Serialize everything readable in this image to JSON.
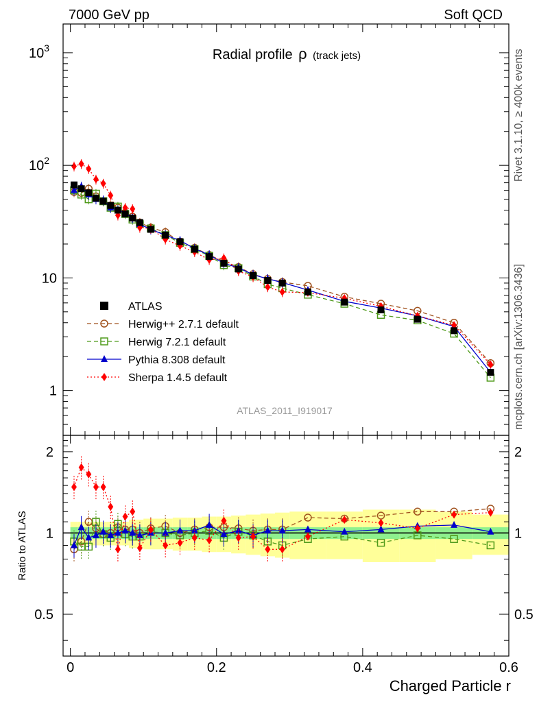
{
  "header": {
    "left": "7000 GeV pp",
    "right": "Soft QCD"
  },
  "side_labels": {
    "top": "Rivet 3.1.10, ≥ 400k events",
    "bottom": "mcplots.cern.ch [arXiv:1306.3436]"
  },
  "chart_data": {
    "type": "line",
    "title_main": "Radial profile",
    "title_symbol": "ρ",
    "title_sub": "(track jets)",
    "watermark": "ATLAS_2011_I919017",
    "xlabel": "Charged Particle r",
    "xlim": [
      -0.01,
      0.6
    ],
    "ylim_top": [
      0.4,
      1800
    ],
    "yscale_top": "log",
    "ylim_ratio": [
      0.35,
      2.3
    ],
    "ratio_ylabel": "Ratio to ATLAS",
    "x_ticks": [
      "0",
      "0.2",
      "0.4",
      "0.6"
    ],
    "x_tick_values": [
      0,
      0.2,
      0.4,
      0.6
    ],
    "y_ticks_top": [
      {
        "v": 1,
        "label": "1"
      },
      {
        "v": 10,
        "label": "10"
      },
      {
        "v": 100,
        "label": "10",
        "sup": "2"
      },
      {
        "v": 1000,
        "label": "10",
        "sup": "3"
      }
    ],
    "y_ticks_ratio": [
      {
        "v": 0.5,
        "label": "0.5"
      },
      {
        "v": 1,
        "label": "1"
      },
      {
        "v": 2,
        "label": "2"
      }
    ],
    "legend_position": "left-middle",
    "x": [
      0.005,
      0.015,
      0.025,
      0.035,
      0.045,
      0.055,
      0.065,
      0.075,
      0.085,
      0.095,
      0.11,
      0.13,
      0.15,
      0.17,
      0.19,
      0.21,
      0.23,
      0.25,
      0.27,
      0.29,
      0.325,
      0.375,
      0.425,
      0.475,
      0.525,
      0.575
    ],
    "bins": [
      [
        0,
        0.01
      ],
      [
        0.01,
        0.02
      ],
      [
        0.02,
        0.03
      ],
      [
        0.03,
        0.04
      ],
      [
        0.04,
        0.05
      ],
      [
        0.05,
        0.06
      ],
      [
        0.06,
        0.07
      ],
      [
        0.07,
        0.08
      ],
      [
        0.08,
        0.09
      ],
      [
        0.09,
        0.1
      ],
      [
        0.1,
        0.12
      ],
      [
        0.12,
        0.14
      ],
      [
        0.14,
        0.16
      ],
      [
        0.16,
        0.18
      ],
      [
        0.18,
        0.2
      ],
      [
        0.2,
        0.22
      ],
      [
        0.22,
        0.24
      ],
      [
        0.24,
        0.26
      ],
      [
        0.26,
        0.28
      ],
      [
        0.28,
        0.3
      ],
      [
        0.3,
        0.35
      ],
      [
        0.35,
        0.4
      ],
      [
        0.4,
        0.45
      ],
      [
        0.45,
        0.5
      ],
      [
        0.5,
        0.55
      ],
      [
        0.55,
        0.6
      ]
    ],
    "band_stat": [
      0.05,
      0.05,
      0.05,
      0.05,
      0.05,
      0.05,
      0.05,
      0.05,
      0.05,
      0.05,
      0.05,
      0.05,
      0.05,
      0.05,
      0.05,
      0.05,
      0.05,
      0.05,
      0.05,
      0.05,
      0.05,
      0.05,
      0.05,
      0.05,
      0.05,
      0.05
    ],
    "band_syst": [
      0.1,
      0.1,
      0.1,
      0.1,
      0.1,
      0.1,
      0.1,
      0.1,
      0.12,
      0.12,
      0.13,
      0.13,
      0.14,
      0.14,
      0.15,
      0.15,
      0.16,
      0.17,
      0.18,
      0.19,
      0.2,
      0.2,
      0.22,
      0.22,
      0.2,
      0.17
    ],
    "data": {
      "name": "ATLAS",
      "values": [
        67,
        62,
        57,
        51,
        48,
        44,
        40,
        37,
        34,
        31,
        27,
        24,
        21,
        18,
        15.5,
        13.5,
        12,
        10.5,
        9.5,
        9,
        7.5,
        6.1,
        5.2,
        4.3,
        3.4,
        1.45
      ]
    },
    "series": [
      {
        "name": "Herwig++ 2.7.1 default",
        "color": "#a0521e",
        "marker": "circle",
        "dash": "6,4",
        "values": [
          58,
          57,
          62,
          53,
          48,
          44,
          42,
          38,
          35,
          31,
          28,
          25.5,
          21,
          18.5,
          16,
          14,
          12.5,
          10.8,
          9.8,
          9.2,
          8.5,
          6.8,
          5.9,
          5.1,
          4,
          1.75
        ],
        "ratio": [
          0.87,
          0.93,
          1.1,
          1.04,
          0.99,
          1.0,
          1.05,
          1.03,
          1.03,
          1.0,
          1.04,
          1.06,
          1.0,
          1.03,
          1.05,
          1.05,
          1.04,
          1.02,
          1.03,
          1.03,
          1.14,
          1.13,
          1.16,
          1.2,
          1.2,
          1.23
        ]
      },
      {
        "name": "Herwig 7.2.1 default",
        "color": "#4f9a1a",
        "marker": "square",
        "dash": "6,4",
        "values": [
          60,
          55,
          50,
          56,
          48,
          42,
          43,
          37,
          33,
          30,
          27.5,
          24,
          20.5,
          18,
          15.7,
          13,
          12.2,
          10.3,
          8.8,
          8.1,
          7.1,
          5.9,
          4.7,
          4.2,
          3.2,
          1.3
        ],
        "ratio": [
          0.93,
          0.89,
          0.89,
          1.1,
          0.99,
          0.96,
          1.08,
          0.99,
          0.97,
          0.97,
          1.01,
          1.0,
          0.98,
          1.0,
          1.02,
          0.96,
          1.01,
          0.98,
          0.93,
          0.9,
          0.95,
          0.97,
          0.92,
          0.98,
          0.95,
          0.9
        ]
      },
      {
        "name": "Pythia 8.308 default",
        "color": "#0000cc",
        "marker": "triangle",
        "dash": "",
        "values": [
          60,
          65,
          55,
          50,
          49,
          42,
          40,
          38,
          34,
          30,
          27,
          24,
          21.5,
          18.2,
          16,
          13.5,
          12.3,
          10.7,
          9.8,
          9.1,
          7.8,
          6.2,
          5.4,
          4.6,
          3.7,
          1.45
        ],
        "ratio": [
          0.9,
          1.05,
          0.96,
          0.98,
          1.01,
          0.98,
          1.0,
          1.02,
          1.0,
          0.98,
          1.0,
          1.0,
          1.02,
          1.02,
          1.07,
          0.99,
          1.02,
          0.98,
          1.02,
          1.02,
          1.03,
          1.01,
          1.03,
          1.06,
          1.07,
          1.01
        ]
      },
      {
        "name": "Sherpa 1.4.5 default",
        "color": "#ff0000",
        "marker": "diamond",
        "dash": "2,3",
        "values": [
          98,
          103,
          93,
          75,
          69,
          54,
          36,
          42,
          41,
          28,
          27.5,
          22,
          19.3,
          17,
          14.5,
          15,
          11.5,
          10.2,
          8.3,
          7.5,
          7.4,
          6.6,
          5.6,
          4.6,
          3.8,
          1.7
        ],
        "ratio": [
          1.48,
          1.75,
          1.65,
          1.48,
          1.48,
          1.25,
          0.87,
          1.15,
          1.2,
          0.88,
          1.03,
          0.9,
          0.92,
          0.96,
          0.94,
          1.11,
          0.96,
          0.97,
          0.87,
          0.87,
          0.97,
          1.12,
          1.09,
          1.04,
          1.17,
          1.19
        ]
      }
    ]
  }
}
